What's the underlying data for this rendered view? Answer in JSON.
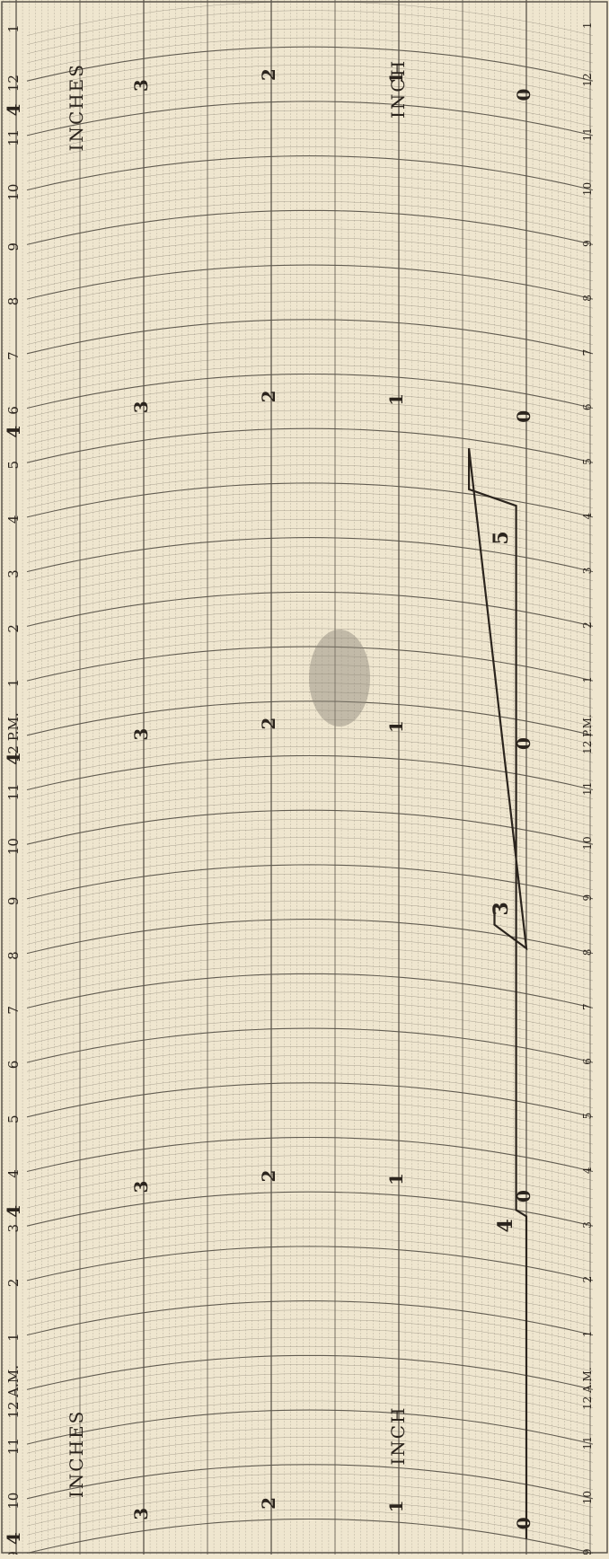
{
  "chart_data": {
    "type": "line",
    "title": "",
    "xlabel": "",
    "ylabel": "",
    "x_axis": {
      "type": "time",
      "range": [
        "9 P.M.",
        "1 A.M. (second day)"
      ],
      "hour_labels": [
        "9",
        "10",
        "11",
        "12 A.M.",
        "1",
        "2",
        "3",
        "4",
        "5",
        "6",
        "7",
        "8",
        "9",
        "10",
        "11",
        "12 P.M.",
        "1",
        "2",
        "3",
        "4",
        "5",
        "6",
        "7",
        "8",
        "9",
        "10",
        "11",
        "12",
        "1"
      ]
    },
    "y_axis": {
      "units": "inches",
      "range": [
        0,
        4
      ],
      "ticks": [
        "0",
        "1",
        "2",
        "3",
        "4"
      ],
      "labels": [
        "INCHES",
        "INCHES",
        "INCH",
        "INCH"
      ]
    },
    "series": [
      {
        "values": [
          {
            "x": "9:00 P.M.",
            "y": 0
          },
          {
            "x": "2:55 A.M.",
            "y": 0
          },
          {
            "x": "3:00 A.M.",
            "y": 0.08
          },
          {
            "x": "3:15 A.M.",
            "y": 0.08
          },
          {
            "x": "3:55 P.M.",
            "y": 0.08
          },
          {
            "x": "4:05 P.M.",
            "y": 0.45
          },
          {
            "x": "4:50 P.M.",
            "y": 0.45
          },
          {
            "x": "7:50 A.M.",
            "y": 0
          },
          {
            "x": "8:10 A.M.",
            "y": 0.25
          },
          {
            "x": "8:30 A.M.",
            "y": 0.25
          }
        ]
      }
    ],
    "annotations": [
      "4",
      "5",
      "3"
    ],
    "grid": true,
    "page_tilt_degrees": -90
  },
  "colors": {
    "paper": "#efe6cf",
    "grid": "#5a544a",
    "ink": "#2b241d",
    "stain": "#8c8478"
  }
}
